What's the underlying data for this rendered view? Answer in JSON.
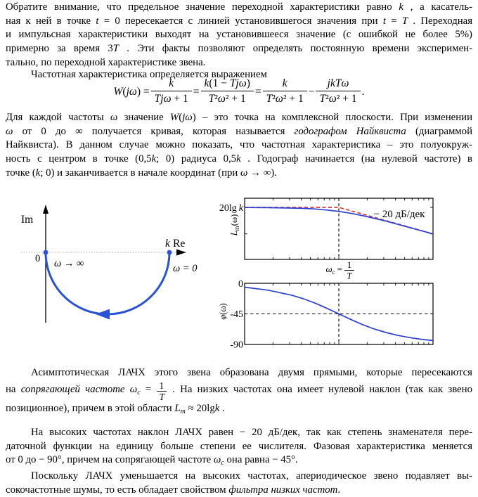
{
  "page": {
    "background": "#ffffff",
    "text_color": "#000000"
  },
  "p1": {
    "indent": false,
    "lines": [
      [
        {
          "t": "Обратите внимание, что предельное значение переходной характеристики равно "
        },
        {
          "t": "k",
          "s": "i"
        },
        {
          "t": " , а касатель-"
        }
      ],
      [
        {
          "t": "ная к ней в точке "
        },
        {
          "t": "t",
          "s": "i"
        },
        {
          "t": " = 0 пересекается с линией установившегося значения при "
        },
        {
          "t": "t",
          "s": "i"
        },
        {
          "t": " = "
        },
        {
          "t": "T",
          "s": "i"
        },
        {
          "t": " . Переходная"
        }
      ],
      [
        {
          "t": "и импульсная характеристики выходят на установившееся значение (с ошибкой не более 5%)"
        }
      ],
      [
        {
          "t": "примерно за время 3"
        },
        {
          "t": "T",
          "s": "i"
        },
        {
          "t": " . Эти факты позволяют определять постоянную времени эксперимен-"
        }
      ],
      [
        {
          "t": "тально, по переходной характеристике звена."
        }
      ]
    ]
  },
  "p2": {
    "indent": true,
    "lines": [
      [
        {
          "t": "Частотная характеристика определяется выражением"
        }
      ]
    ]
  },
  "formula": {
    "items": [
      {
        "t": "W",
        "s": "i"
      },
      {
        "t": "("
      },
      {
        "t": "jω",
        "s": "i"
      },
      {
        "t": ") = "
      },
      {
        "f": {
          "n": [
            {
              "t": "k",
              "s": "i"
            }
          ],
          "d": [
            {
              "t": "Tjω",
              "s": "i"
            },
            {
              "t": " + 1"
            }
          ]
        }
      },
      {
        "t": " = "
      },
      {
        "f": {
          "n": [
            {
              "t": "k",
              "s": "i"
            },
            {
              "t": "(1 − "
            },
            {
              "t": "Tjω",
              "s": "i"
            },
            {
              "t": ")"
            }
          ],
          "d": [
            {
              "t": "T",
              "s": "i"
            },
            {
              "t": "²"
            },
            {
              "t": "ω",
              "s": "i"
            },
            {
              "t": "² + 1"
            }
          ]
        }
      },
      {
        "t": " = "
      },
      {
        "f": {
          "n": [
            {
              "t": "k",
              "s": "i"
            }
          ],
          "d": [
            {
              "t": "T",
              "s": "i"
            },
            {
              "t": "²"
            },
            {
              "t": "ω",
              "s": "i"
            },
            {
              "t": "² + 1"
            }
          ]
        }
      },
      {
        "t": " − "
      },
      {
        "f": {
          "n": [
            {
              "t": "jkTω",
              "s": "i"
            }
          ],
          "d": [
            {
              "t": "T",
              "s": "i"
            },
            {
              "t": "²"
            },
            {
              "t": "ω",
              "s": "i"
            },
            {
              "t": "² + 1"
            }
          ]
        }
      },
      {
        "t": " ."
      }
    ]
  },
  "p3": {
    "indent": false,
    "lines": [
      [
        {
          "t": "Для каждой частоты "
        },
        {
          "t": "ω",
          "s": "i"
        },
        {
          "t": " значение "
        },
        {
          "t": "W",
          "s": "i"
        },
        {
          "t": "("
        },
        {
          "t": "jω",
          "s": "i"
        },
        {
          "t": ") – это точка на комплексной плоскости. При изменении"
        }
      ],
      [
        {
          "t": "ω",
          "s": "i"
        },
        {
          "t": " от 0 до ∞ получается кривая, которая называется "
        },
        {
          "t": "годографом Найквиста",
          "s": "i"
        },
        {
          "t": " (диаграммой"
        }
      ],
      [
        {
          "t": "Найквиста). В данном случае можно показать, что частотная характеристика – это полуокруж-"
        }
      ],
      [
        {
          "t": "ность с центром в точке (0,5"
        },
        {
          "t": "k",
          "s": "i"
        },
        {
          "t": "; 0) радиуса 0,5"
        },
        {
          "t": "k",
          "s": "i"
        },
        {
          "t": " . Годограф начинается (на нулевой частоте) в"
        }
      ],
      [
        {
          "t": "точке ("
        },
        {
          "t": "k",
          "s": "i"
        },
        {
          "t": "; 0) и заканчивается в начале координат (при "
        },
        {
          "t": "ω",
          "s": "i"
        },
        {
          "t": " → ∞)."
        }
      ]
    ]
  },
  "p4": {
    "indent": true,
    "lines": [
      [
        {
          "t": "Асимптотическая ЛАЧХ этого звена образована двумя прямыми, которые пересекаются"
        }
      ],
      [
        {
          "t": "на "
        },
        {
          "t": "сопрягающей частоте",
          "s": "i"
        },
        {
          "t": " "
        },
        {
          "t": "ω",
          "s": "i"
        },
        {
          "t": "c",
          "s": "sub"
        },
        {
          "t": " = "
        },
        {
          "f": {
            "n": [
              {
                "t": "1"
              }
            ],
            "d": [
              {
                "t": "T",
                "s": "i"
              }
            ]
          }
        },
        {
          "t": " . На низких частотах она имеет нулевой наклон (так как звено"
        }
      ],
      [
        {
          "t": "позиционное), причем в этой области "
        },
        {
          "t": "L",
          "s": "i"
        },
        {
          "t": "m",
          "s": "sub"
        },
        {
          "t": " ≈ 20lg"
        },
        {
          "t": "k",
          "s": "i"
        },
        {
          "t": " ."
        }
      ]
    ]
  },
  "p5": {
    "indent": true,
    "lines": [
      [
        {
          "t": "На высоких частотах наклон ЛАЧХ равен − 20 дБ/дек, так как степень знаменателя пере-"
        }
      ],
      [
        {
          "t": "даточной функции на единицу больше степени ее числителя. Фазовая характеристика меняется"
        }
      ],
      [
        {
          "t": "от 0 до − 90°, причем на сопрягающей частоте "
        },
        {
          "t": "ω",
          "s": "i"
        },
        {
          "t": "c",
          "s": "sub"
        },
        {
          "t": " она равна − 45°."
        }
      ]
    ]
  },
  "p6": {
    "indent": true,
    "lines": [
      [
        {
          "t": "Поскольку ЛАЧХ уменьшается на высоких частотах, апериодическое звено подавляет вы-"
        }
      ],
      [
        {
          "t": "сокочастотные шумы, то есть обладает свойством "
        },
        {
          "t": "фильтра низких частот",
          "s": "i"
        },
        {
          "t": "."
        }
      ]
    ]
  },
  "figures": {
    "nyquist": {
      "im": "Im",
      "re": "Re",
      "zero": "0",
      "k": "k",
      "omega_inf": "ω → ∞",
      "omega_zero": "ω = 0",
      "curve_color": "#2a52d4"
    },
    "bode_mag": {
      "ytick_pre": "20lg",
      "ytick_k": "k",
      "ylabel_base": "L",
      "ylabel_sub": "m",
      "ylabel_rest": "(ω)",
      "slope": "− 20 дБ/дек",
      "xc_omega": "ω",
      "xc_sub": "c",
      "xc_eq": "=",
      "xc_num": "1",
      "xc_den": "T",
      "asymptote_color": "#e03636",
      "curve_color": "#2a3fd2"
    },
    "bode_phase": {
      "ylabel_base": "φ",
      "ylabel_rest": "(ω)",
      "ytick0": "0",
      "ytick45": "-45",
      "ytick90": "-90",
      "curve_color": "#2a3fd2"
    }
  },
  "chart_data": [
    {
      "type": "line",
      "title": "Годограф Найквиста (Nyquist plot)",
      "xlabel": "Re",
      "ylabel": "Im",
      "curve": "полуокружность в нижней полуплоскости",
      "center": [
        "0.5k",
        0
      ],
      "radius": "0.5k",
      "start_point": [
        "k",
        0
      ],
      "start_label": "ω = 0",
      "end_point": [
        0,
        0
      ],
      "end_label": "ω → ∞"
    },
    {
      "type": "line",
      "title": "ЛАЧХ Lm(ω)",
      "xscale": "log",
      "x_range_decades_rel_wc": [
        -1,
        1
      ],
      "ytick": "20lg k",
      "corner_freq": "ωc = 1/T",
      "asymptote": "горизонталь 20lg k до ωc, далее наклон −20 дБ/дек",
      "curve_dB_rel_20lgk": {
        "u_log10": [
          -1,
          -0.5,
          -0.25,
          0,
          0.25,
          0.5,
          1
        ],
        "values": [
          -0.04,
          -0.41,
          -1.19,
          -3.01,
          -6.19,
          -10.41,
          -20.04
        ]
      }
    },
    {
      "type": "line",
      "title": "Фазовая характеристика φ(ω)",
      "xscale": "log",
      "ylim": [
        -90,
        0
      ],
      "yticks": [
        0,
        -45,
        -90
      ],
      "phase_deg": {
        "u_log10": [
          -1,
          -0.5,
          -0.25,
          0,
          0.25,
          0.5,
          1
        ],
        "values": [
          -5.7,
          -17.5,
          -29.3,
          -45,
          -60.7,
          -72.5,
          -84.3
        ]
      },
      "note": "φ(ωc) = −45°"
    }
  ]
}
